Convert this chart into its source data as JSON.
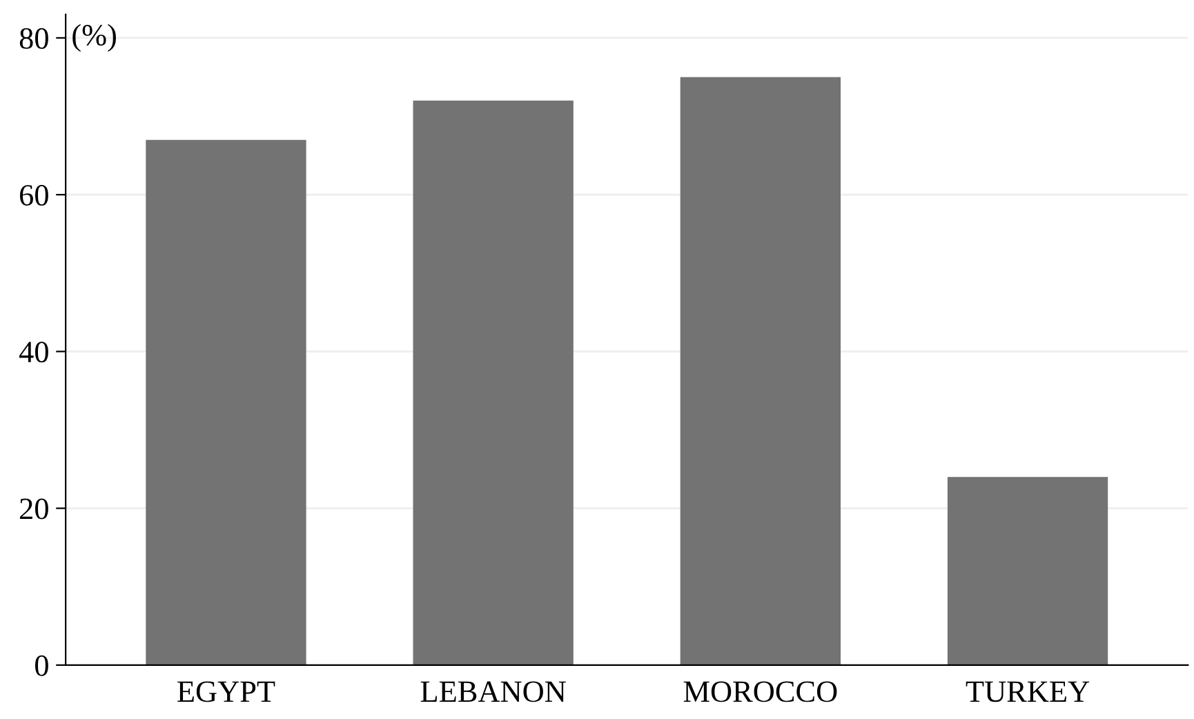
{
  "chart_data": {
    "type": "bar",
    "ylabel": "(%)",
    "categories": [
      "EGYPT",
      "LEBANON",
      "MOROCCO",
      "TURKEY"
    ],
    "values": [
      67,
      72,
      75,
      24
    ],
    "color": "#737373",
    "ylim": [
      0,
      83
    ],
    "yticks": [
      0,
      20,
      40,
      60,
      80
    ],
    "grid": "y"
  }
}
